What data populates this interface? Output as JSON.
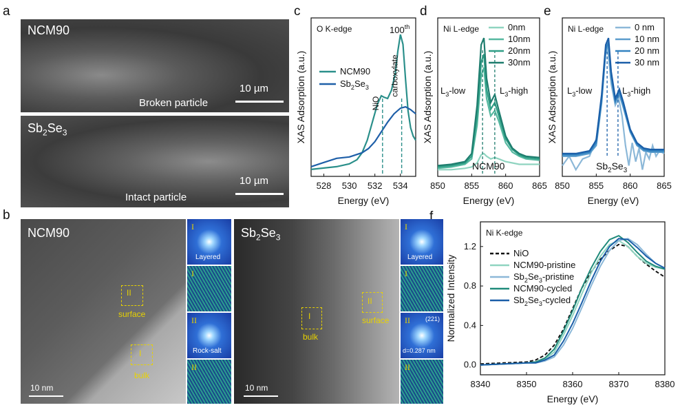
{
  "panel_labels": {
    "a": "a",
    "b": "b",
    "c": "c",
    "d": "d",
    "e": "e",
    "f": "f"
  },
  "panel_a": {
    "top": {
      "sample": "NCM90",
      "caption": "Broken particle",
      "scale": "10 µm"
    },
    "bottom": {
      "sample_main": "Sb",
      "sample_sub1": "2",
      "sample_mid": "Se",
      "sample_sub2": "3",
      "caption": "Intact particle",
      "scale": "10 µm"
    }
  },
  "panel_b": {
    "left": {
      "sample": "NCM90",
      "roi_surface": "surface",
      "roi_bulk": "bulk",
      "roi_II": "II",
      "roi_I": "I",
      "scale": "10 nm",
      "tiles": [
        {
          "roman": "I",
          "label": "Layered"
        },
        {
          "roman": "I",
          "label": ""
        },
        {
          "roman": "II",
          "label": "Rock-salt"
        },
        {
          "roman": "II",
          "label": ""
        }
      ]
    },
    "right": {
      "sample_main": "Sb",
      "sample_sub1": "2",
      "sample_mid": "Se",
      "sample_sub2": "3",
      "roi_surface": "surface",
      "roi_bulk": "bulk",
      "roi_II": "II",
      "roi_I": "I",
      "scale": "10 nm",
      "tiles": [
        {
          "roman": "I",
          "label": "Layered"
        },
        {
          "roman": "I",
          "label": ""
        },
        {
          "roman": "II",
          "label": "d=0.287 nm",
          "extra": "(221)"
        },
        {
          "roman": "II",
          "label": ""
        }
      ]
    }
  },
  "chart_data": [
    {
      "panel": "c",
      "type": "line",
      "title": "O K-edge",
      "xlabel": "Energy (eV)",
      "ylabel": "XAS Adsorption (a.u.)",
      "xlim": [
        527,
        535.2
      ],
      "xticks": [
        528,
        530,
        532,
        534
      ],
      "annotations": [
        {
          "text": "NiO",
          "x": 532.6
        },
        {
          "text": "carboxylate",
          "x": 534.1
        },
        {
          "text": "100",
          "sup": "th"
        }
      ],
      "series": [
        {
          "name": "NCM90",
          "color": "#2a8f8a",
          "x": [
            527,
            528,
            529,
            530,
            530.6,
            531,
            531.4,
            531.8,
            532.2,
            532.5,
            532.7,
            533,
            533.3,
            533.6,
            533.8,
            534,
            534.2,
            534.4,
            534.6,
            534.8,
            535,
            535.2
          ],
          "y": [
            0.03,
            0.04,
            0.05,
            0.07,
            0.1,
            0.15,
            0.24,
            0.37,
            0.5,
            0.56,
            0.55,
            0.54,
            0.6,
            0.72,
            0.88,
            1.0,
            0.93,
            0.68,
            0.45,
            0.33,
            0.27,
            0.24
          ]
        },
        {
          "name": "Sb₂Se₃",
          "color": "#1e5fa8",
          "x": [
            527,
            528,
            529,
            530,
            531,
            531.5,
            532,
            532.5,
            533,
            533.5,
            534,
            534.4,
            534.8,
            535.2
          ],
          "y": [
            0.05,
            0.08,
            0.11,
            0.12,
            0.15,
            0.18,
            0.23,
            0.3,
            0.37,
            0.43,
            0.47,
            0.48,
            0.46,
            0.43
          ]
        }
      ]
    },
    {
      "panel": "d",
      "type": "line",
      "title": "Ni L-edge",
      "xlabel": "Energy (eV)",
      "ylabel": "XAS Adsorption (a.u.)",
      "xlim": [
        850,
        865
      ],
      "xticks": [
        850,
        855,
        860,
        865
      ],
      "annotations": [
        {
          "text": "L",
          "sub": "3",
          "tail": "-low",
          "x": 856.6
        },
        {
          "text": "L",
          "sub": "3",
          "tail": "-high",
          "x": 858.4
        },
        {
          "text": "NCM90"
        }
      ],
      "series": [
        {
          "name": "0nm",
          "color": "#8fd4c0",
          "x": [
            850,
            852,
            854,
            855,
            855.8,
            856.4,
            856.8,
            857.2,
            857.8,
            858.4,
            859,
            860,
            861,
            862,
            863,
            865
          ],
          "y": [
            0.02,
            0.02,
            0.03,
            0.04,
            0.07,
            0.13,
            0.14,
            0.12,
            0.1,
            0.11,
            0.1,
            0.08,
            0.07,
            0.06,
            0.06,
            0.06
          ]
        },
        {
          "name": "10nm",
          "color": "#56b8a0",
          "x": [
            850,
            852,
            854,
            855,
            855.8,
            856.4,
            856.8,
            857.2,
            857.8,
            858.4,
            859,
            860,
            861,
            862,
            863,
            865
          ],
          "y": [
            0.03,
            0.04,
            0.06,
            0.1,
            0.35,
            0.72,
            0.78,
            0.55,
            0.42,
            0.46,
            0.38,
            0.22,
            0.15,
            0.12,
            0.1,
            0.09
          ]
        },
        {
          "name": "20nm",
          "color": "#2f9e86",
          "x": [
            850,
            852,
            854,
            855,
            855.8,
            856.4,
            856.8,
            857.2,
            857.8,
            858.4,
            859,
            860,
            861,
            862,
            863,
            865
          ],
          "y": [
            0.04,
            0.05,
            0.07,
            0.12,
            0.42,
            0.82,
            0.88,
            0.62,
            0.47,
            0.52,
            0.42,
            0.25,
            0.17,
            0.13,
            0.11,
            0.1
          ]
        },
        {
          "name": "30nm",
          "color": "#1e7d6e",
          "x": [
            850,
            852,
            854,
            855,
            855.8,
            856.4,
            856.8,
            857.2,
            857.8,
            858.4,
            859,
            860,
            861,
            862,
            863,
            865
          ],
          "y": [
            0.05,
            0.06,
            0.08,
            0.14,
            0.5,
            0.95,
            1.0,
            0.7,
            0.52,
            0.58,
            0.46,
            0.27,
            0.18,
            0.14,
            0.12,
            0.11
          ]
        }
      ]
    },
    {
      "panel": "e",
      "type": "line",
      "title": "Ni L-edge",
      "xlabel": "Energy (eV)",
      "ylabel": "XAS Adsorption (a.u.)",
      "xlim": [
        850,
        865
      ],
      "xticks": [
        850,
        855,
        860,
        865
      ],
      "annotations": [
        {
          "text": "L",
          "sub": "3",
          "tail": "-low",
          "x": 856.6
        },
        {
          "text": "L",
          "sub": "3",
          "tail": "-high",
          "x": 858.2
        },
        {
          "text": "Sb",
          "sub": "2",
          "mid": "Se",
          "sub2": "3"
        }
      ],
      "series": [
        {
          "name": "0 nm",
          "color": "#8cb8d8",
          "x": [
            850,
            851,
            852,
            853,
            854,
            855,
            855.8,
            856.3,
            856.7,
            857.2,
            857.8,
            858.3,
            858.8,
            859.3,
            859.8,
            860.3,
            860.8,
            861.3,
            861.8,
            862.3,
            862.8,
            863.3,
            863.8,
            864.3,
            865
          ],
          "y": [
            0.05,
            0.12,
            0.02,
            0.1,
            0.12,
            0.25,
            0.55,
            0.88,
            0.92,
            0.66,
            0.5,
            0.55,
            0.42,
            0.2,
            0.05,
            0.22,
            0.08,
            0.18,
            0.02,
            0.15,
            0.1,
            0.2,
            0.12,
            0.16,
            0.14
          ]
        },
        {
          "name": "10 nm",
          "color": "#5a9ccc",
          "x": [
            850,
            852,
            854,
            855,
            855.8,
            856.4,
            856.8,
            857.2,
            857.8,
            858.4,
            859,
            860,
            861,
            862,
            863,
            865
          ],
          "y": [
            0.12,
            0.12,
            0.14,
            0.2,
            0.52,
            0.9,
            0.95,
            0.7,
            0.52,
            0.58,
            0.48,
            0.3,
            0.2,
            0.16,
            0.15,
            0.15
          ]
        },
        {
          "name": "20 nm",
          "color": "#3282c0",
          "x": [
            850,
            852,
            854,
            855,
            855.8,
            856.4,
            856.8,
            857.2,
            857.8,
            858.4,
            859,
            860,
            861,
            862,
            863,
            865
          ],
          "y": [
            0.13,
            0.13,
            0.15,
            0.22,
            0.55,
            0.92,
            0.97,
            0.72,
            0.53,
            0.6,
            0.5,
            0.31,
            0.21,
            0.17,
            0.16,
            0.16
          ]
        },
        {
          "name": "30 nm",
          "color": "#1a5ea8",
          "x": [
            850,
            852,
            854,
            855,
            855.8,
            856.4,
            856.8,
            857.2,
            857.8,
            858.4,
            859,
            860,
            861,
            862,
            863,
            865
          ],
          "y": [
            0.14,
            0.14,
            0.16,
            0.24,
            0.58,
            0.95,
            1.0,
            0.75,
            0.55,
            0.62,
            0.52,
            0.32,
            0.22,
            0.18,
            0.17,
            0.17
          ]
        }
      ]
    },
    {
      "panel": "f",
      "type": "line",
      "title": "Ni K-edge",
      "xlabel": "Energy (eV)",
      "ylabel": "Normalized Intensity",
      "xlim": [
        8340,
        8380
      ],
      "ylim": [
        -0.1,
        1.45
      ],
      "xticks": [
        8340,
        8350,
        8360,
        8370,
        8380
      ],
      "yticks": [
        0.0,
        0.4,
        0.8,
        1.2
      ],
      "ytick_labels": [
        "0.0",
        "0.4",
        "0.8",
        "1.2"
      ],
      "series": [
        {
          "name": "NiO",
          "color": "#111111",
          "dash": true,
          "x": [
            8340,
            8345,
            8350,
            8352,
            8354,
            8356,
            8358,
            8360,
            8362,
            8364,
            8366,
            8368,
            8370,
            8372,
            8374,
            8376,
            8378,
            8380
          ],
          "y": [
            0.01,
            0.02,
            0.03,
            0.05,
            0.1,
            0.2,
            0.36,
            0.57,
            0.78,
            0.94,
            1.07,
            1.16,
            1.22,
            1.2,
            1.1,
            1.02,
            0.95,
            0.89
          ]
        },
        {
          "name": "NCM90-pristine",
          "color": "#8fd4c0",
          "x": [
            8340,
            8345,
            8350,
            8352,
            8354,
            8356,
            8358,
            8360,
            8362,
            8364,
            8366,
            8368,
            8370,
            8372,
            8374,
            8376,
            8378,
            8380
          ],
          "y": [
            0.0,
            0.01,
            0.02,
            0.03,
            0.06,
            0.13,
            0.3,
            0.5,
            0.72,
            0.93,
            1.1,
            1.22,
            1.26,
            1.2,
            1.1,
            1.03,
            0.99,
            0.97
          ]
        },
        {
          "name": "Sb₂Se₃-pristine",
          "color": "#8cb8d8",
          "x": [
            8340,
            8345,
            8350,
            8352,
            8354,
            8356,
            8358,
            8360,
            8362,
            8364,
            8366,
            8368,
            8370,
            8372,
            8374,
            8376,
            8378,
            8380
          ],
          "y": [
            0.0,
            0.01,
            0.02,
            0.02,
            0.04,
            0.08,
            0.2,
            0.37,
            0.58,
            0.8,
            1.0,
            1.16,
            1.26,
            1.28,
            1.22,
            1.12,
            1.03,
            0.98
          ]
        },
        {
          "name": "NCM90-cycled",
          "color": "#1f8a7a",
          "x": [
            8340,
            8345,
            8350,
            8352,
            8354,
            8356,
            8358,
            8360,
            8362,
            8364,
            8366,
            8368,
            8370,
            8372,
            8374,
            8376,
            8378,
            8380
          ],
          "y": [
            0.0,
            0.01,
            0.02,
            0.03,
            0.07,
            0.16,
            0.34,
            0.55,
            0.78,
            0.98,
            1.15,
            1.27,
            1.31,
            1.24,
            1.14,
            1.05,
            1.0,
            0.97
          ]
        },
        {
          "name": "Sb₂Se₃-cycled",
          "color": "#1a5ea8",
          "x": [
            8340,
            8345,
            8350,
            8352,
            8354,
            8356,
            8358,
            8360,
            8362,
            8364,
            8366,
            8368,
            8370,
            8372,
            8374,
            8376,
            8378,
            8380
          ],
          "y": [
            0.0,
            0.01,
            0.02,
            0.02,
            0.05,
            0.1,
            0.24,
            0.42,
            0.63,
            0.85,
            1.05,
            1.2,
            1.28,
            1.27,
            1.19,
            1.1,
            1.03,
            0.98
          ]
        }
      ]
    }
  ]
}
